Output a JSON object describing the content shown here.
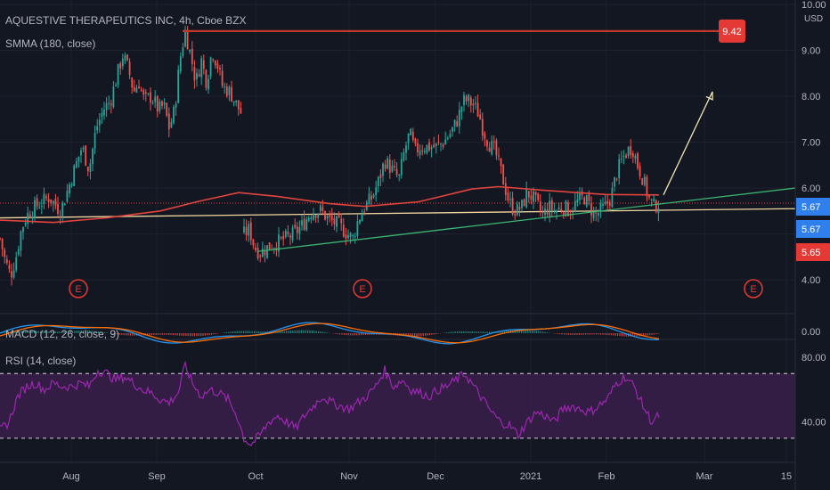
{
  "header": {
    "symbol_line": "AQUESTIVE THERAPEUTICS INC, 4h, Cboe BZX",
    "smma_label": "SMMA (180, close)",
    "macd_label": "MACD (12, 26, close, 9)",
    "rsi_label": "RSI (14, close)",
    "currency": "USD"
  },
  "colors": {
    "background": "#131722",
    "up": "#26a69a",
    "down": "#ef5350",
    "smma": "#e0443e",
    "trendline": "#3cb371",
    "support_line": "#f3d7a0",
    "resistance_line": "#c0392b",
    "rsi": "#9c27b0",
    "rsi_band": "#3b1f4a",
    "macd": "#2196f3",
    "signal": "#ff6d00",
    "earnings": "#e53935",
    "arrow": "#f0e6b0",
    "badge_blue": "#2f80ed",
    "badge_red": "#e53935"
  },
  "chart_data": {
    "type": "candlestick",
    "timeframe": "4h",
    "price_axis": {
      "range": [
        3.4,
        10.0
      ],
      "ticks": [
        "4.00",
        "5.00",
        "6.00",
        "7.00",
        "8.00",
        "9.00",
        "10.00"
      ]
    },
    "time_axis": {
      "ticks": [
        "Aug",
        "Sep",
        "Oct",
        "Nov",
        "Dec",
        "2021",
        "Feb",
        "Mar",
        "15"
      ]
    },
    "price_path": [
      [
        0,
        4.9
      ],
      [
        6,
        4.4
      ],
      [
        12,
        4.1
      ],
      [
        18,
        4.5
      ],
      [
        24,
        5.1
      ],
      [
        30,
        5.4
      ],
      [
        40,
        5.6
      ],
      [
        55,
        5.8
      ],
      [
        68,
        5.5
      ],
      [
        75,
        5.9
      ],
      [
        85,
        6.5
      ],
      [
        92,
        6.9
      ],
      [
        100,
        6.4
      ],
      [
        108,
        7.3
      ],
      [
        116,
        7.7
      ],
      [
        124,
        7.9
      ],
      [
        132,
        8.5
      ],
      [
        138,
        8.9
      ],
      [
        144,
        8.6
      ],
      [
        150,
        8.1
      ],
      [
        156,
        8.3
      ],
      [
        162,
        7.9
      ],
      [
        170,
        8.0
      ],
      [
        178,
        7.7
      ],
      [
        184,
        7.8
      ],
      [
        190,
        7.3
      ],
      [
        196,
        7.7
      ],
      [
        202,
        8.8
      ],
      [
        208,
        9.42
      ],
      [
        214,
        8.9
      ],
      [
        220,
        8.3
      ],
      [
        226,
        8.8
      ],
      [
        232,
        8.3
      ],
      [
        238,
        9.0
      ],
      [
        244,
        8.7
      ],
      [
        250,
        8.2
      ],
      [
        258,
        8.1
      ],
      [
        266,
        7.8
      ],
      [
        272,
        7.6
      ]
    ],
    "price_path_2": [
      [
        274,
        5.0
      ],
      [
        280,
        5.1
      ],
      [
        286,
        4.7
      ],
      [
        292,
        4.6
      ],
      [
        300,
        4.7
      ],
      [
        310,
        4.8
      ],
      [
        320,
        4.9
      ],
      [
        330,
        5.0
      ],
      [
        340,
        5.2
      ],
      [
        350,
        5.5
      ],
      [
        360,
        5.5
      ],
      [
        370,
        5.3
      ],
      [
        380,
        5.2
      ],
      [
        390,
        5.0
      ],
      [
        396,
        4.9
      ],
      [
        402,
        5.3
      ],
      [
        410,
        5.6
      ],
      [
        418,
        5.8
      ],
      [
        426,
        6.2
      ],
      [
        432,
        6.6
      ],
      [
        440,
        6.4
      ],
      [
        448,
        6.2
      ],
      [
        454,
        6.8
      ],
      [
        460,
        7.2
      ],
      [
        466,
        6.8
      ],
      [
        472,
        6.9
      ],
      [
        480,
        6.9
      ],
      [
        490,
        6.9
      ],
      [
        498,
        7.0
      ],
      [
        506,
        7.2
      ],
      [
        514,
        7.5
      ],
      [
        520,
        7.9
      ],
      [
        526,
        7.9
      ],
      [
        532,
        7.8
      ],
      [
        538,
        7.6
      ],
      [
        542,
        7.3
      ],
      [
        548,
        7.0
      ],
      [
        556,
        6.8
      ],
      [
        562,
        6.4
      ],
      [
        566,
        6.1
      ],
      [
        570,
        5.8
      ],
      [
        574,
        5.6
      ],
      [
        580,
        5.5
      ],
      [
        586,
        5.6
      ],
      [
        592,
        5.9
      ],
      [
        598,
        5.8
      ],
      [
        604,
        5.6
      ],
      [
        610,
        5.4
      ],
      [
        616,
        5.6
      ],
      [
        624,
        5.5
      ],
      [
        632,
        5.6
      ],
      [
        640,
        5.5
      ],
      [
        648,
        5.7
      ],
      [
        656,
        5.8
      ],
      [
        662,
        5.6
      ],
      [
        668,
        5.4
      ],
      [
        674,
        5.5
      ],
      [
        680,
        5.6
      ],
      [
        686,
        5.8
      ],
      [
        692,
        6.3
      ],
      [
        698,
        6.6
      ],
      [
        704,
        6.8
      ],
      [
        710,
        6.9
      ],
      [
        716,
        6.5
      ],
      [
        722,
        6.2
      ],
      [
        728,
        5.8
      ],
      [
        734,
        5.6
      ],
      [
        740,
        5.67
      ]
    ],
    "smma": [
      [
        0,
        5.3
      ],
      [
        60,
        5.25
      ],
      [
        120,
        5.35
      ],
      [
        180,
        5.5
      ],
      [
        225,
        5.72
      ],
      [
        268,
        5.9
      ],
      [
        310,
        5.82
      ],
      [
        370,
        5.66
      ],
      [
        410,
        5.6
      ],
      [
        470,
        5.7
      ],
      [
        530,
        5.98
      ],
      [
        560,
        6.03
      ],
      [
        610,
        5.95
      ],
      [
        680,
        5.86
      ],
      [
        740,
        5.85
      ]
    ],
    "horizontal_lines": [
      {
        "price": 9.42,
        "label": "9.42",
        "style": "resistance"
      },
      {
        "price": 5.67,
        "style": "dotted"
      }
    ],
    "support_line": {
      "from": [
        0,
        5.35
      ],
      "to": [
        893,
        5.55
      ]
    },
    "trendline": {
      "from": [
        290,
        4.62
      ],
      "to": [
        893,
        6.0
      ]
    },
    "arrow": {
      "from": [
        745,
        5.85
      ],
      "to": [
        800,
        8.1
      ]
    },
    "price_labels": [
      "5.67",
      "5.67",
      "5.65"
    ],
    "earnings_markers": [
      {
        "x": 88,
        "label": "E"
      },
      {
        "x": 407,
        "label": "E"
      },
      {
        "x": 846,
        "label": "E"
      }
    ],
    "macd": {
      "axis_label": "0.00"
    },
    "rsi": {
      "period": 14,
      "range": [
        20,
        90
      ],
      "bands": [
        30,
        70
      ],
      "ticks": [
        "80.00",
        "40.00"
      ],
      "values": [
        [
          0,
          35
        ],
        [
          10,
          40
        ],
        [
          20,
          56
        ],
        [
          30,
          62
        ],
        [
          40,
          64
        ],
        [
          50,
          60
        ],
        [
          60,
          64
        ],
        [
          70,
          62
        ],
        [
          80,
          62
        ],
        [
          90,
          64
        ],
        [
          100,
          62
        ],
        [
          110,
          72
        ],
        [
          120,
          70
        ],
        [
          130,
          66
        ],
        [
          140,
          68
        ],
        [
          150,
          64
        ],
        [
          160,
          60
        ],
        [
          170,
          58
        ],
        [
          180,
          54
        ],
        [
          190,
          52
        ],
        [
          200,
          58
        ],
        [
          208,
          75
        ],
        [
          216,
          64
        ],
        [
          226,
          56
        ],
        [
          236,
          60
        ],
        [
          246,
          58
        ],
        [
          256,
          54
        ],
        [
          266,
          44
        ],
        [
          274,
          30
        ],
        [
          282,
          26
        ],
        [
          292,
          32
        ],
        [
          302,
          40
        ],
        [
          312,
          44
        ],
        [
          322,
          40
        ],
        [
          332,
          36
        ],
        [
          342,
          44
        ],
        [
          352,
          50
        ],
        [
          362,
          56
        ],
        [
          372,
          52
        ],
        [
          382,
          50
        ],
        [
          392,
          48
        ],
        [
          402,
          52
        ],
        [
          412,
          56
        ],
        [
          422,
          62
        ],
        [
          432,
          72
        ],
        [
          442,
          62
        ],
        [
          452,
          66
        ],
        [
          462,
          60
        ],
        [
          472,
          58
        ],
        [
          482,
          56
        ],
        [
          492,
          60
        ],
        [
          502,
          62
        ],
        [
          512,
          66
        ],
        [
          522,
          70
        ],
        [
          532,
          62
        ],
        [
          542,
          54
        ],
        [
          552,
          46
        ],
        [
          562,
          40
        ],
        [
          572,
          38
        ],
        [
          582,
          32
        ],
        [
          592,
          40
        ],
        [
          602,
          46
        ],
        [
          612,
          44
        ],
        [
          622,
          40
        ],
        [
          632,
          48
        ],
        [
          642,
          50
        ],
        [
          652,
          48
        ],
        [
          662,
          46
        ],
        [
          672,
          50
        ],
        [
          682,
          54
        ],
        [
          692,
          64
        ],
        [
          702,
          68
        ],
        [
          712,
          62
        ],
        [
          722,
          50
        ],
        [
          732,
          40
        ],
        [
          740,
          44
        ]
      ]
    }
  }
}
